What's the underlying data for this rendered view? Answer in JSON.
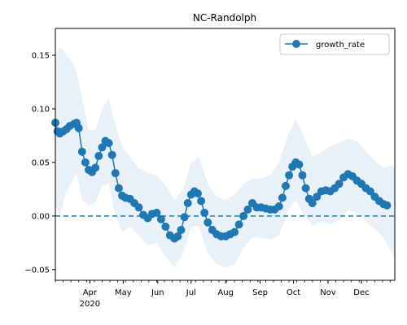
{
  "chart_data": {
    "type": "line",
    "title": "NC-Randolph",
    "xlabel": "",
    "ylabel": "",
    "x_axis": {
      "type": "date",
      "range": [
        "2020-03-01",
        "2020-12-31"
      ],
      "major_ticks": [
        {
          "date": "2020-04-01",
          "label": "Apr",
          "sublabel": "2020"
        },
        {
          "date": "2020-05-01",
          "label": "May"
        },
        {
          "date": "2020-06-01",
          "label": "Jun"
        },
        {
          "date": "2020-07-01",
          "label": "Jul"
        },
        {
          "date": "2020-08-01",
          "label": "Aug"
        },
        {
          "date": "2020-09-01",
          "label": "Sep"
        },
        {
          "date": "2020-10-01",
          "label": "Oct"
        },
        {
          "date": "2020-11-01",
          "label": "Nov"
        },
        {
          "date": "2020-12-01",
          "label": "Dec"
        }
      ],
      "minor_ticks": "weekly"
    },
    "ylim": [
      -0.06,
      0.175
    ],
    "yticks": [
      {
        "value": -0.05,
        "label": "−0.05"
      },
      {
        "value": 0.0,
        "label": "0.00"
      },
      {
        "value": 0.05,
        "label": "0.05"
      },
      {
        "value": 0.1,
        "label": "0.10"
      },
      {
        "value": 0.15,
        "label": "0.15"
      }
    ],
    "grid": false,
    "legend": {
      "position": "top-right",
      "entries": [
        {
          "label": "growth_rate",
          "marker": "circle",
          "color": "#1f77b4"
        }
      ]
    },
    "reference_line": {
      "y": 0.0,
      "style": "dashed",
      "color": "#1f77b4"
    },
    "series": [
      {
        "name": "growth_rate",
        "color": "#1f77b4",
        "marker": "circle",
        "points": [
          [
            "2020-03-01",
            0.087
          ],
          [
            "2020-03-03",
            0.079
          ],
          [
            "2020-03-05",
            0.077
          ],
          [
            "2020-03-08",
            0.079
          ],
          [
            "2020-03-11",
            0.081
          ],
          [
            "2020-03-14",
            0.084
          ],
          [
            "2020-03-18",
            0.086
          ],
          [
            "2020-03-20",
            0.087
          ],
          [
            "2020-03-22",
            0.082
          ],
          [
            "2020-03-25",
            0.06
          ],
          [
            "2020-03-28",
            0.05
          ],
          [
            "2020-03-31",
            0.043
          ],
          [
            "2020-04-03",
            0.041
          ],
          [
            "2020-04-06",
            0.045
          ],
          [
            "2020-04-09",
            0.056
          ],
          [
            "2020-04-12",
            0.064
          ],
          [
            "2020-04-15",
            0.07
          ],
          [
            "2020-04-18",
            0.068
          ],
          [
            "2020-04-21",
            0.057
          ],
          [
            "2020-04-24",
            0.04
          ],
          [
            "2020-04-27",
            0.026
          ],
          [
            "2020-04-30",
            0.019
          ],
          [
            "2020-05-03",
            0.017
          ],
          [
            "2020-05-07",
            0.016
          ],
          [
            "2020-05-11",
            0.012
          ],
          [
            "2020-05-15",
            0.008
          ],
          [
            "2020-05-19",
            0.001
          ],
          [
            "2020-05-23",
            -0.002
          ],
          [
            "2020-05-27",
            0.002
          ],
          [
            "2020-05-31",
            0.003
          ],
          [
            "2020-06-04",
            -0.003
          ],
          [
            "2020-06-08",
            -0.01
          ],
          [
            "2020-06-12",
            -0.018
          ],
          [
            "2020-06-16",
            -0.021
          ],
          [
            "2020-06-19",
            -0.019
          ],
          [
            "2020-06-22",
            -0.013
          ],
          [
            "2020-06-25",
            -0.001
          ],
          [
            "2020-06-28",
            0.012
          ],
          [
            "2020-07-01",
            0.02
          ],
          [
            "2020-07-04",
            0.023
          ],
          [
            "2020-07-07",
            0.021
          ],
          [
            "2020-07-10",
            0.014
          ],
          [
            "2020-07-13",
            0.003
          ],
          [
            "2020-07-16",
            -0.006
          ],
          [
            "2020-07-20",
            -0.013
          ],
          [
            "2020-07-24",
            -0.017
          ],
          [
            "2020-07-28",
            -0.019
          ],
          [
            "2020-08-01",
            -0.019
          ],
          [
            "2020-08-05",
            -0.017
          ],
          [
            "2020-08-09",
            -0.015
          ],
          [
            "2020-08-13",
            -0.008
          ],
          [
            "2020-08-17",
            0.0
          ],
          [
            "2020-08-21",
            0.006
          ],
          [
            "2020-08-25",
            0.012
          ],
          [
            "2020-08-29",
            0.008
          ],
          [
            "2020-09-02",
            0.008
          ],
          [
            "2020-09-06",
            0.007
          ],
          [
            "2020-09-10",
            0.006
          ],
          [
            "2020-09-14",
            0.006
          ],
          [
            "2020-09-18",
            0.009
          ],
          [
            "2020-09-21",
            0.017
          ],
          [
            "2020-09-24",
            0.028
          ],
          [
            "2020-09-27",
            0.038
          ],
          [
            "2020-09-30",
            0.046
          ],
          [
            "2020-10-03",
            0.05
          ],
          [
            "2020-10-06",
            0.048
          ],
          [
            "2020-10-09",
            0.038
          ],
          [
            "2020-10-12",
            0.026
          ],
          [
            "2020-10-15",
            0.016
          ],
          [
            "2020-10-18",
            0.012
          ],
          [
            "2020-10-22",
            0.018
          ],
          [
            "2020-10-26",
            0.023
          ],
          [
            "2020-10-30",
            0.024
          ],
          [
            "2020-11-03",
            0.023
          ],
          [
            "2020-11-07",
            0.026
          ],
          [
            "2020-11-11",
            0.03
          ],
          [
            "2020-11-15",
            0.036
          ],
          [
            "2020-11-19",
            0.039
          ],
          [
            "2020-11-23",
            0.037
          ],
          [
            "2020-11-27",
            0.033
          ],
          [
            "2020-12-01",
            0.03
          ],
          [
            "2020-12-05",
            0.026
          ],
          [
            "2020-12-09",
            0.023
          ],
          [
            "2020-12-13",
            0.018
          ],
          [
            "2020-12-17",
            0.014
          ],
          [
            "2020-12-21",
            0.011
          ],
          [
            "2020-12-24",
            0.01
          ]
        ],
        "band": {
          "color": "#1f77b4",
          "opacity": 0.1,
          "upper": [
            [
              "2020-03-01",
              0.15
            ],
            [
              "2020-03-05",
              0.158
            ],
            [
              "2020-03-10",
              0.152
            ],
            [
              "2020-03-15",
              0.145
            ],
            [
              "2020-03-20",
              0.135
            ],
            [
              "2020-03-25",
              0.11
            ],
            [
              "2020-03-31",
              0.08
            ],
            [
              "2020-04-06",
              0.08
            ],
            [
              "2020-04-12",
              0.1
            ],
            [
              "2020-04-18",
              0.11
            ],
            [
              "2020-04-24",
              0.085
            ],
            [
              "2020-04-30",
              0.065
            ],
            [
              "2020-05-07",
              0.055
            ],
            [
              "2020-05-15",
              0.045
            ],
            [
              "2020-05-23",
              0.04
            ],
            [
              "2020-05-31",
              0.038
            ],
            [
              "2020-06-08",
              0.028
            ],
            [
              "2020-06-16",
              0.015
            ],
            [
              "2020-06-24",
              0.025
            ],
            [
              "2020-07-01",
              0.05
            ],
            [
              "2020-07-08",
              0.055
            ],
            [
              "2020-07-16",
              0.03
            ],
            [
              "2020-07-24",
              0.018
            ],
            [
              "2020-08-01",
              0.015
            ],
            [
              "2020-08-09",
              0.02
            ],
            [
              "2020-08-17",
              0.03
            ],
            [
              "2020-08-25",
              0.035
            ],
            [
              "2020-09-02",
              0.035
            ],
            [
              "2020-09-10",
              0.038
            ],
            [
              "2020-09-18",
              0.05
            ],
            [
              "2020-09-26",
              0.075
            ],
            [
              "2020-10-03",
              0.09
            ],
            [
              "2020-10-10",
              0.075
            ],
            [
              "2020-10-18",
              0.055
            ],
            [
              "2020-10-26",
              0.06
            ],
            [
              "2020-11-03",
              0.065
            ],
            [
              "2020-11-11",
              0.068
            ],
            [
              "2020-11-19",
              0.072
            ],
            [
              "2020-11-27",
              0.07
            ],
            [
              "2020-12-05",
              0.06
            ],
            [
              "2020-12-13",
              0.052
            ],
            [
              "2020-12-21",
              0.045
            ],
            [
              "2020-12-31",
              0.048
            ]
          ],
          "lower": [
            [
              "2020-03-01",
              0.01
            ],
            [
              "2020-03-05",
              0.0
            ],
            [
              "2020-03-10",
              0.02
            ],
            [
              "2020-03-15",
              0.03
            ],
            [
              "2020-03-20",
              0.04
            ],
            [
              "2020-03-25",
              0.015
            ],
            [
              "2020-03-31",
              0.01
            ],
            [
              "2020-04-06",
              0.012
            ],
            [
              "2020-04-12",
              0.028
            ],
            [
              "2020-04-18",
              0.03
            ],
            [
              "2020-04-24",
              0.0
            ],
            [
              "2020-04-30",
              -0.015
            ],
            [
              "2020-05-07",
              -0.01
            ],
            [
              "2020-05-15",
              -0.018
            ],
            [
              "2020-05-23",
              -0.028
            ],
            [
              "2020-05-31",
              -0.025
            ],
            [
              "2020-06-08",
              -0.038
            ],
            [
              "2020-06-16",
              -0.048
            ],
            [
              "2020-06-24",
              -0.035
            ],
            [
              "2020-07-01",
              -0.01
            ],
            [
              "2020-07-08",
              -0.01
            ],
            [
              "2020-07-16",
              -0.035
            ],
            [
              "2020-07-24",
              -0.045
            ],
            [
              "2020-08-01",
              -0.048
            ],
            [
              "2020-08-09",
              -0.045
            ],
            [
              "2020-08-17",
              -0.03
            ],
            [
              "2020-08-25",
              -0.02
            ],
            [
              "2020-09-02",
              -0.02
            ],
            [
              "2020-09-10",
              -0.022
            ],
            [
              "2020-09-18",
              -0.018
            ],
            [
              "2020-09-26",
              0.005
            ],
            [
              "2020-10-03",
              0.015
            ],
            [
              "2020-10-10",
              0.002
            ],
            [
              "2020-10-18",
              -0.01
            ],
            [
              "2020-10-26",
              -0.005
            ],
            [
              "2020-11-03",
              -0.008
            ],
            [
              "2020-11-11",
              -0.004
            ],
            [
              "2020-11-19",
              0.005
            ],
            [
              "2020-11-27",
              0.003
            ],
            [
              "2020-12-05",
              -0.005
            ],
            [
              "2020-12-13",
              -0.012
            ],
            [
              "2020-12-21",
              -0.02
            ],
            [
              "2020-12-31",
              -0.04
            ]
          ]
        }
      }
    ]
  }
}
